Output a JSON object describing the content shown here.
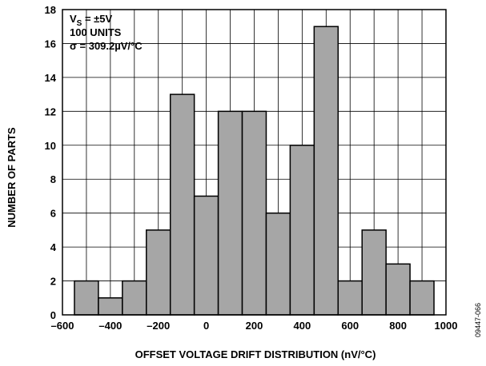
{
  "chart_data": {
    "type": "bar",
    "title": "",
    "xlabel": "OFFSET VOLTAGE DRIFT DISTRIBUTION (nV/°C)",
    "ylabel": "NUMBER OF PARTS",
    "xlim": [
      -600,
      1000
    ],
    "ylim": [
      0,
      18
    ],
    "x_ticks": [
      "–600",
      "–400",
      "–200",
      "0",
      "200",
      "400",
      "600",
      "800",
      "1000"
    ],
    "y_ticks": [
      "0",
      "2",
      "4",
      "6",
      "8",
      "10",
      "12",
      "14",
      "16",
      "18"
    ],
    "bin_width": 100,
    "bins": [
      {
        "center": -500,
        "count": 2
      },
      {
        "center": -400,
        "count": 1
      },
      {
        "center": -300,
        "count": 2
      },
      {
        "center": -200,
        "count": 5
      },
      {
        "center": -100,
        "count": 13
      },
      {
        "center": 0,
        "count": 7
      },
      {
        "center": 100,
        "count": 12
      },
      {
        "center": 200,
        "count": 12
      },
      {
        "center": 300,
        "count": 6
      },
      {
        "center": 400,
        "count": 10
      },
      {
        "center": 500,
        "count": 17
      },
      {
        "center": 600,
        "count": 2
      },
      {
        "center": 700,
        "count": 5
      },
      {
        "center": 800,
        "count": 3
      },
      {
        "center": 900,
        "count": 2
      }
    ],
    "grid": true,
    "bar_color": "#a6a6a6",
    "annotations": {
      "vs_main": "V",
      "vs_sub": "S",
      "vs_rest": " = ±5V",
      "units": "100 UNITS",
      "sigma": "σ = 309.2µV/°C"
    },
    "figure_code": "09447-066"
  }
}
